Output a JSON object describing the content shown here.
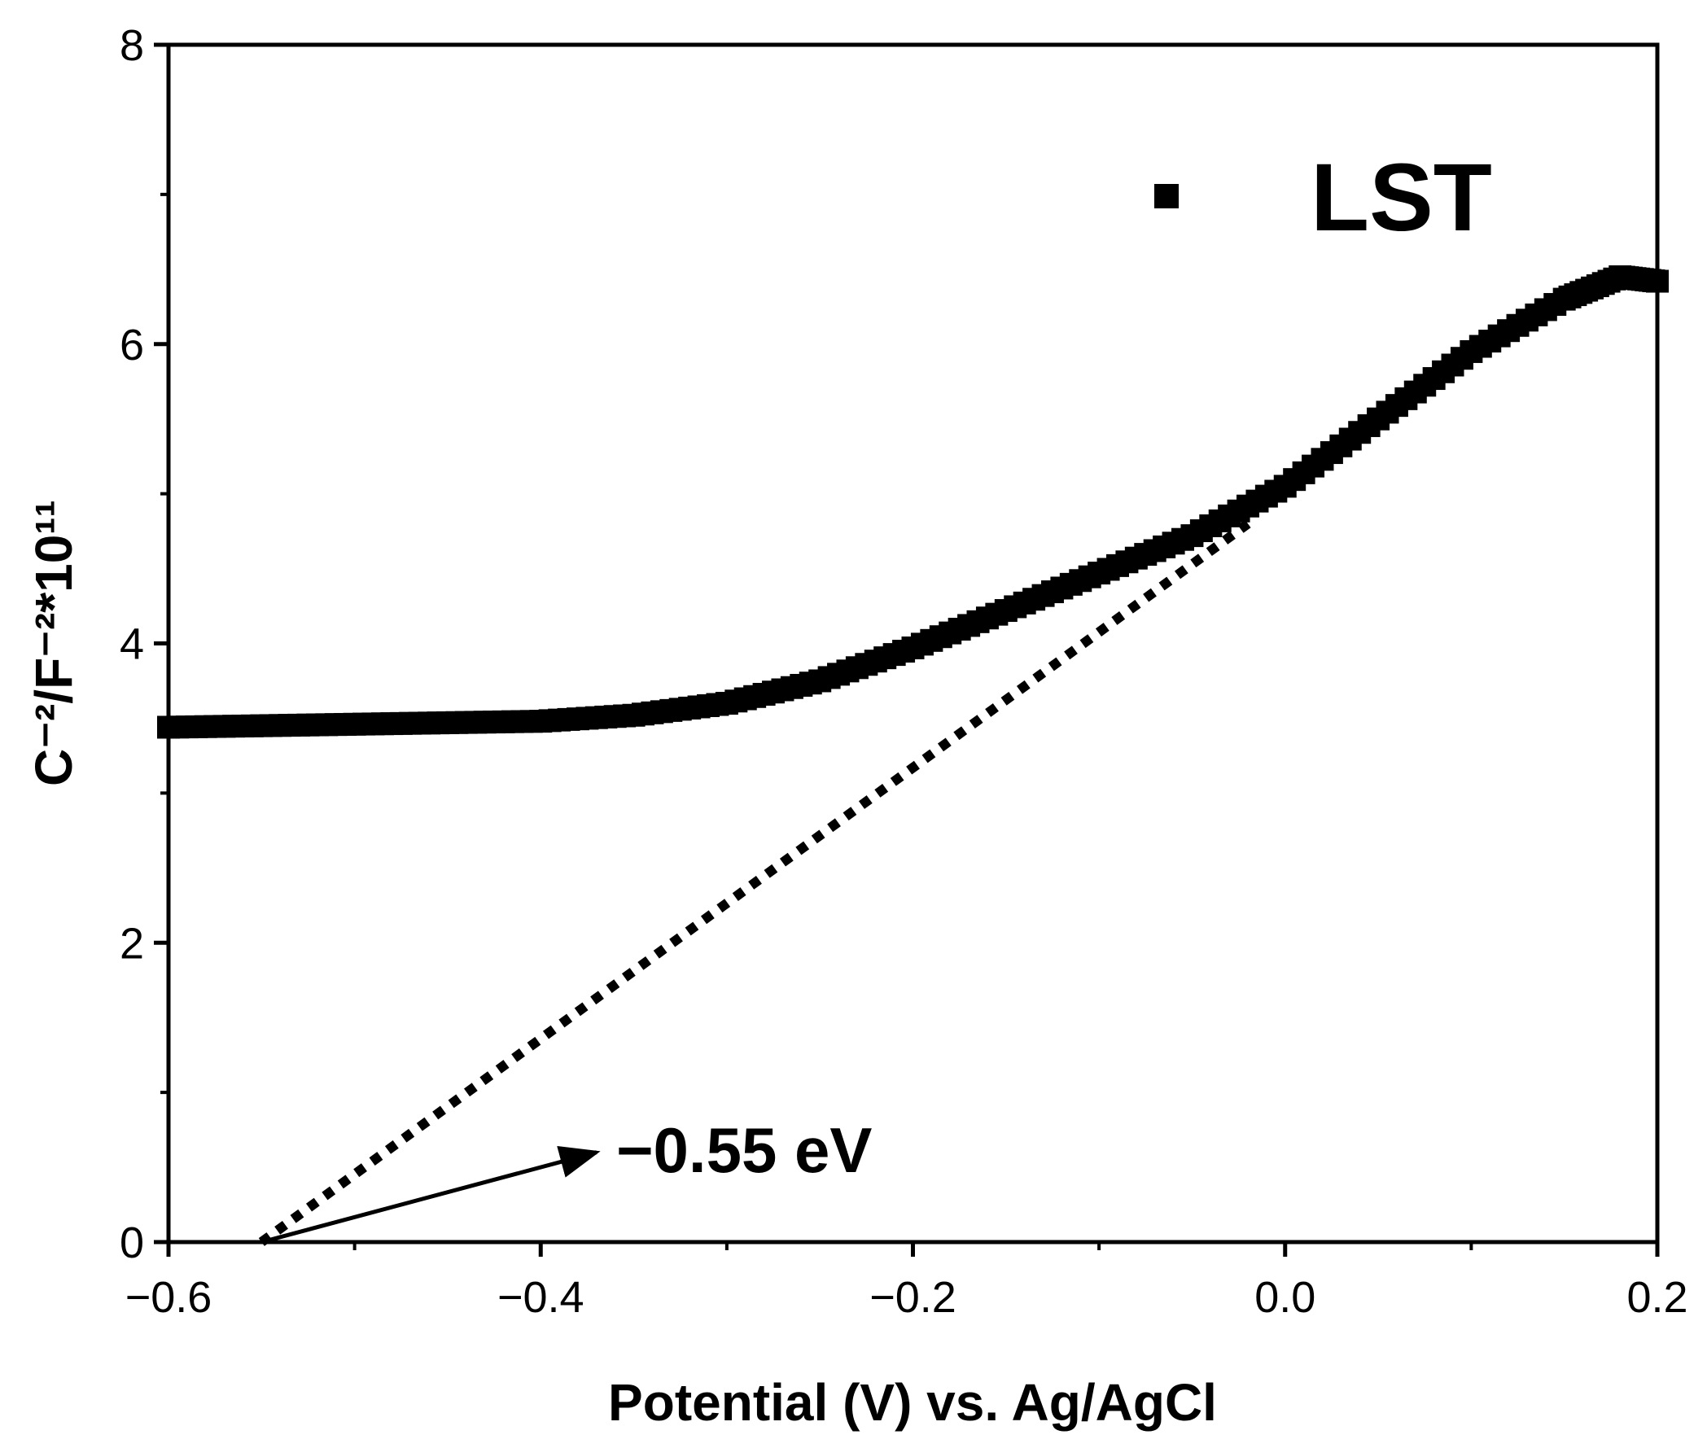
{
  "chart_data": {
    "type": "scatter",
    "title": "",
    "xlabel": "Potential (V) vs. Ag/AgCl",
    "ylabel": "C⁻²/F⁻²*10¹¹",
    "xlim": [
      -0.6,
      0.2
    ],
    "ylim": [
      0,
      8
    ],
    "grid": false,
    "legend_position": "top-right",
    "xticks": [
      -0.6,
      -0.4,
      -0.2,
      0.0,
      0.2
    ],
    "xtick_labels": [
      "−0.6",
      "−0.4",
      "−0.2",
      "0.0",
      "0.2"
    ],
    "yticks": [
      0,
      2,
      4,
      6,
      8
    ],
    "ytick_labels": [
      "0",
      "2",
      "4",
      "6",
      "8"
    ],
    "series": [
      {
        "name": "LST",
        "marker": "square",
        "color": "#000000",
        "x": [
          -0.6,
          -0.55,
          -0.5,
          -0.45,
          -0.4,
          -0.35,
          -0.3,
          -0.25,
          -0.2,
          -0.15,
          -0.1,
          -0.05,
          0.0,
          0.05,
          0.1,
          0.15,
          0.18,
          0.2
        ],
        "y": [
          3.44,
          3.45,
          3.46,
          3.47,
          3.48,
          3.52,
          3.6,
          3.75,
          3.97,
          4.22,
          4.47,
          4.72,
          5.05,
          5.5,
          5.95,
          6.3,
          6.45,
          6.42
        ]
      }
    ],
    "fit_line": {
      "style": "dotted",
      "x": [
        -0.55,
        -0.02
      ],
      "y": [
        0.0,
        4.8
      ]
    },
    "annotations": [
      {
        "text": "−0.55 eV",
        "arrow_from": [
          -0.55,
          0.0
        ],
        "arrow_to": [
          -0.37,
          0.6
        ]
      }
    ]
  }
}
